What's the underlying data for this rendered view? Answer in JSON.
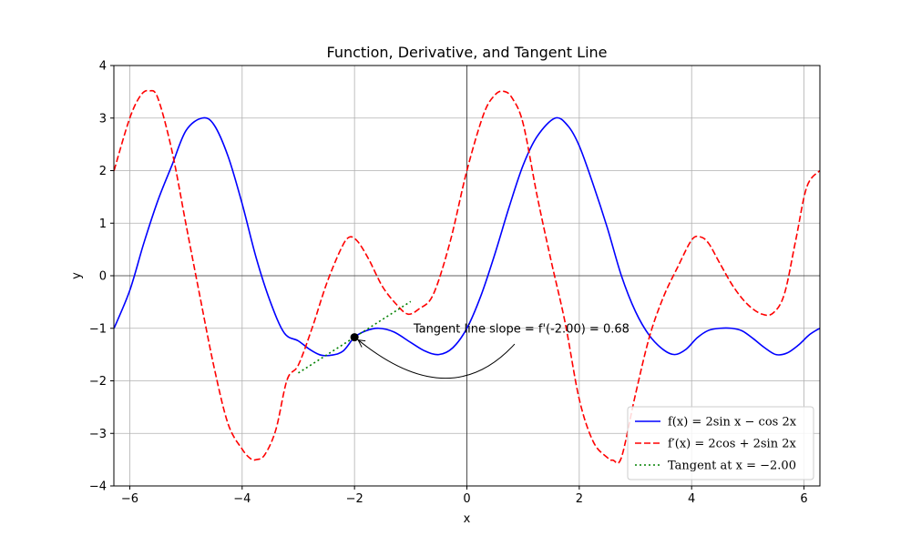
{
  "chart_data": {
    "type": "line",
    "title": "Function, Derivative, and Tangent Line",
    "xlabel": "x",
    "ylabel": "y",
    "xlim": [
      -6.283,
      6.283
    ],
    "ylim": [
      -4,
      4
    ],
    "xticks": [
      -6,
      -4,
      -2,
      0,
      2,
      4,
      6
    ],
    "yticks": [
      -4,
      -3,
      -2,
      -1,
      0,
      1,
      2,
      3,
      4
    ],
    "xtick_labels": [
      "−6",
      "−4",
      "−2",
      "0",
      "2",
      "4",
      "6"
    ],
    "ytick_labels": [
      "−4",
      "−3",
      "−2",
      "−1",
      "0",
      "1",
      "2",
      "3",
      "4"
    ],
    "grid": true,
    "legend_position": "bottom-right",
    "series": [
      {
        "name": "f(x) = 2sin x − cos 2x",
        "color": "#0000ff",
        "style": "solid",
        "x": [
          -6.28,
          -6.0,
          -5.75,
          -5.5,
          -5.25,
          -5.0,
          -4.712,
          -4.5,
          -4.25,
          -4.0,
          -3.75,
          -3.5,
          -3.25,
          -3.0,
          -2.8,
          -2.6,
          -2.4,
          -2.2,
          -2.0,
          -1.8,
          -1.571,
          -1.3,
          -1.0,
          -0.75,
          -0.5,
          -0.25,
          0.0,
          0.25,
          0.5,
          0.75,
          1.0,
          1.25,
          1.571,
          1.8,
          2.0,
          2.25,
          2.5,
          2.75,
          3.0,
          3.25,
          3.5,
          3.7,
          3.9,
          4.1,
          4.3,
          4.5,
          4.712,
          4.9,
          5.1,
          5.3,
          5.5,
          5.7,
          5.9,
          6.1,
          6.28
        ],
        "y": [
          -1.0,
          -0.28,
          0.62,
          1.43,
          2.1,
          2.76,
          3.0,
          2.87,
          2.27,
          1.37,
          0.34,
          -0.49,
          -1.09,
          -1.24,
          -1.4,
          -1.51,
          -1.51,
          -1.43,
          -1.17,
          -1.05,
          -1.0,
          -1.07,
          -1.27,
          -1.43,
          -1.5,
          -1.37,
          -1.0,
          -0.38,
          0.42,
          1.3,
          2.1,
          2.65,
          3.0,
          2.85,
          2.47,
          1.73,
          0.91,
          0.0,
          -0.68,
          -1.14,
          -1.41,
          -1.5,
          -1.4,
          -1.18,
          -1.04,
          -1.0,
          -1.0,
          -1.05,
          -1.2,
          -1.37,
          -1.5,
          -1.47,
          -1.32,
          -1.12,
          -1.0
        ]
      },
      {
        "name": "f′(x) = 2cos + 2sin 2x",
        "color": "#ff0000",
        "style": "dashed",
        "x": [
          -6.28,
          -6.0,
          -5.8,
          -5.65,
          -5.5,
          -5.25,
          -5.0,
          -4.75,
          -4.5,
          -4.25,
          -4.0,
          -3.85,
          -3.75,
          -3.6,
          -3.4,
          -3.2,
          -3.0,
          -2.75,
          -2.5,
          -2.25,
          -2.1,
          -1.95,
          -1.75,
          -1.5,
          -1.25,
          -1.05,
          -0.85,
          -0.6,
          -0.3,
          0.0,
          0.3,
          0.5,
          0.65,
          0.8,
          1.0,
          1.25,
          1.5,
          1.75,
          2.0,
          2.25,
          2.5,
          2.6,
          2.75,
          3.0,
          3.25,
          3.5,
          3.75,
          4.0,
          4.15,
          4.3,
          4.5,
          4.75,
          5.0,
          5.25,
          5.45,
          5.65,
          5.85,
          6.05,
          6.28
        ],
        "y": [
          2.0,
          3.0,
          3.44,
          3.52,
          3.38,
          2.38,
          0.98,
          -0.4,
          -1.74,
          -2.82,
          -3.3,
          -3.48,
          -3.5,
          -3.41,
          -2.93,
          -1.98,
          -1.7,
          -0.98,
          -0.16,
          0.49,
          0.73,
          0.66,
          0.32,
          -0.21,
          -0.55,
          -0.73,
          -0.63,
          -0.36,
          0.64,
          2.0,
          3.08,
          3.44,
          3.51,
          3.39,
          2.9,
          1.52,
          0.28,
          -0.9,
          -2.35,
          -3.16,
          -3.46,
          -3.51,
          -3.46,
          -2.26,
          -1.16,
          -0.4,
          0.16,
          0.68,
          0.74,
          0.62,
          0.24,
          -0.22,
          -0.55,
          -0.73,
          -0.71,
          -0.35,
          0.66,
          1.69,
          2.0
        ]
      },
      {
        "name": "Tangent at x = −2.00",
        "color": "#008000",
        "style": "dotted",
        "x": [
          -3.0,
          -1.0
        ],
        "y": [
          -1.85,
          -0.49
        ]
      }
    ],
    "point": {
      "x": -2.0,
      "y": -1.17,
      "color": "#000000"
    },
    "annotation": {
      "text": "Tangent line slope = f'(-2.00) = 0.68",
      "text_x": -1.0,
      "text_y": -1.1,
      "arrow_start_x": 0.85,
      "arrow_start_y": -1.3,
      "arrow_target_x": -2.0,
      "arrow_target_y": -1.17,
      "arrow_low_y": -1.95
    }
  }
}
